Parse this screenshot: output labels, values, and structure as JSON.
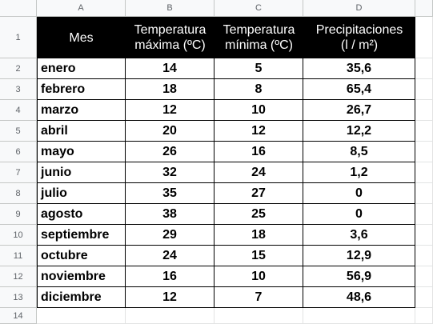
{
  "column_headers": [
    "A",
    "B",
    "C",
    "D"
  ],
  "row_numbers": [
    1,
    2,
    3,
    4,
    5,
    6,
    7,
    8,
    9,
    10,
    11,
    12,
    13,
    14
  ],
  "table": {
    "header": [
      [
        "Mes"
      ],
      [
        "Temperatura",
        "máxima (ºC)"
      ],
      [
        "Temperatura",
        "mínima (ºC)"
      ],
      [
        "Precipitaciones",
        "(l / m²)"
      ]
    ],
    "rows": [
      [
        "enero",
        "14",
        "5",
        "35,6"
      ],
      [
        "febrero",
        "18",
        "8",
        "65,4"
      ],
      [
        "marzo",
        "12",
        "10",
        "26,7"
      ],
      [
        "abril",
        "20",
        "12",
        "12,2"
      ],
      [
        "mayo",
        "26",
        "16",
        "8,5"
      ],
      [
        "junio",
        "32",
        "24",
        "1,2"
      ],
      [
        "julio",
        "35",
        "27",
        "0"
      ],
      [
        "agosto",
        "38",
        "25",
        "0"
      ],
      [
        "septiembre",
        "29",
        "18",
        "3,6"
      ],
      [
        "octubre",
        "24",
        "15",
        "12,9"
      ],
      [
        "noviembre",
        "16",
        "10",
        "56,9"
      ],
      [
        "diciembre",
        "12",
        "7",
        "48,6"
      ]
    ]
  }
}
